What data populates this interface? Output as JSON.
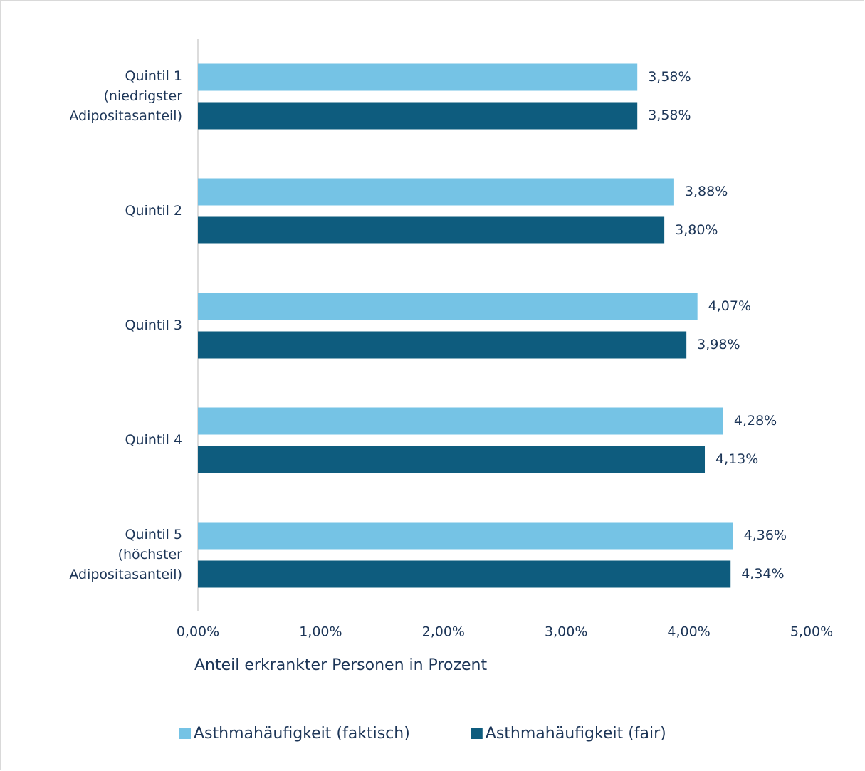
{
  "chart_data": {
    "type": "hbar",
    "categories": [
      [
        "Quintil 1",
        "(niedrigster",
        "Adipositasanteil)"
      ],
      [
        "Quintil 2"
      ],
      [
        "Quintil 3"
      ],
      [
        "Quintil 4"
      ],
      [
        "Quintil 5",
        "(höchster",
        "Adipositasanteil)"
      ]
    ],
    "series": [
      {
        "name": "Asthmahäufigkeit (faktisch)",
        "color": "#75c3e5",
        "values": [
          3.58,
          3.88,
          4.07,
          4.28,
          4.36
        ],
        "value_labels": [
          "3,58%",
          "3,88%",
          "4,07%",
          "4,28%",
          "4,36%"
        ]
      },
      {
        "name": "Asthmahäufigkeit (fair)",
        "color": "#0e5c7e",
        "values": [
          3.58,
          3.8,
          3.98,
          4.13,
          4.34
        ],
        "value_labels": [
          "3,58%",
          "3,80%",
          "3,98%",
          "4,13%",
          "4,34%"
        ]
      }
    ],
    "xlabel": "Anteil erkrankter Personen in Prozent",
    "xlim": [
      0,
      5
    ],
    "xticks": [
      {
        "value": 0,
        "label": "0,00%"
      },
      {
        "value": 1,
        "label": "1,00%"
      },
      {
        "value": 2,
        "label": "2,00%"
      },
      {
        "value": 3,
        "label": "3,00%"
      },
      {
        "value": 4,
        "label": "4,00%"
      },
      {
        "value": 5,
        "label": "5,00%"
      }
    ],
    "grid": false,
    "legend": "bottom"
  }
}
